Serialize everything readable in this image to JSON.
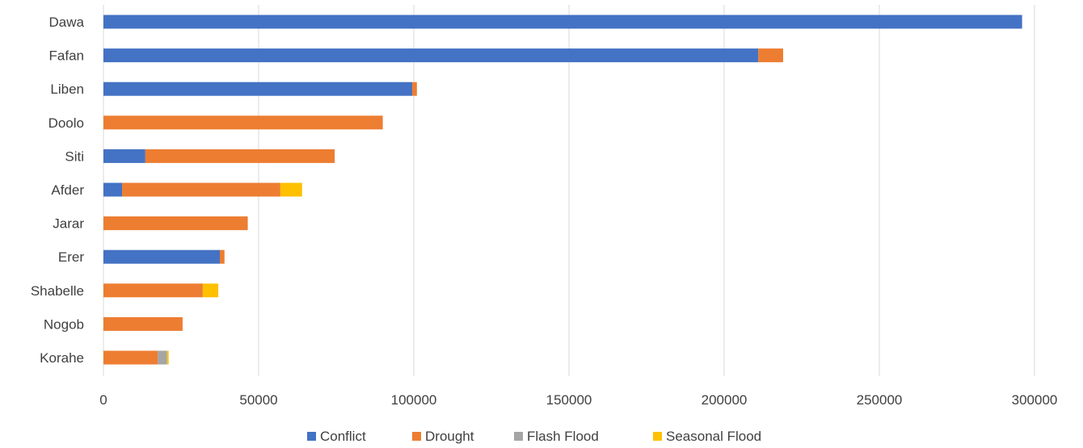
{
  "chart_data": {
    "type": "bar",
    "orientation": "horizontal",
    "stacked": true,
    "categories": [
      "Dawa",
      "Fafan",
      "Liben",
      "Doolo",
      "Siti",
      "Afder",
      "Jarar",
      "Erer",
      "Shabelle",
      "Nogob",
      "Korahe"
    ],
    "series": [
      {
        "name": "Conflict",
        "color": "#4472C4",
        "values": [
          296000,
          211000,
          99500,
          0,
          13500,
          6000,
          0,
          37500,
          0,
          0,
          0
        ]
      },
      {
        "name": "Drought",
        "color": "#ED7D31",
        "values": [
          0,
          8000,
          1500,
          90000,
          61000,
          51000,
          46500,
          1500,
          32000,
          25500,
          17500
        ]
      },
      {
        "name": "Flash Flood",
        "color": "#A5A5A5",
        "values": [
          0,
          0,
          0,
          0,
          0,
          0,
          0,
          0,
          0,
          0,
          3000
        ]
      },
      {
        "name": "Seasonal Flood",
        "color": "#FFC000",
        "values": [
          0,
          0,
          0,
          0,
          0,
          7000,
          0,
          0,
          5000,
          0,
          500
        ]
      }
    ],
    "x_ticks": [
      "0",
      "50000",
      "100000",
      "150000",
      "200000",
      "250000",
      "300000"
    ],
    "xlim": [
      0,
      300000
    ],
    "title": "",
    "xlabel": "",
    "ylabel": "",
    "grid": "vertical",
    "legend": "bottom"
  }
}
